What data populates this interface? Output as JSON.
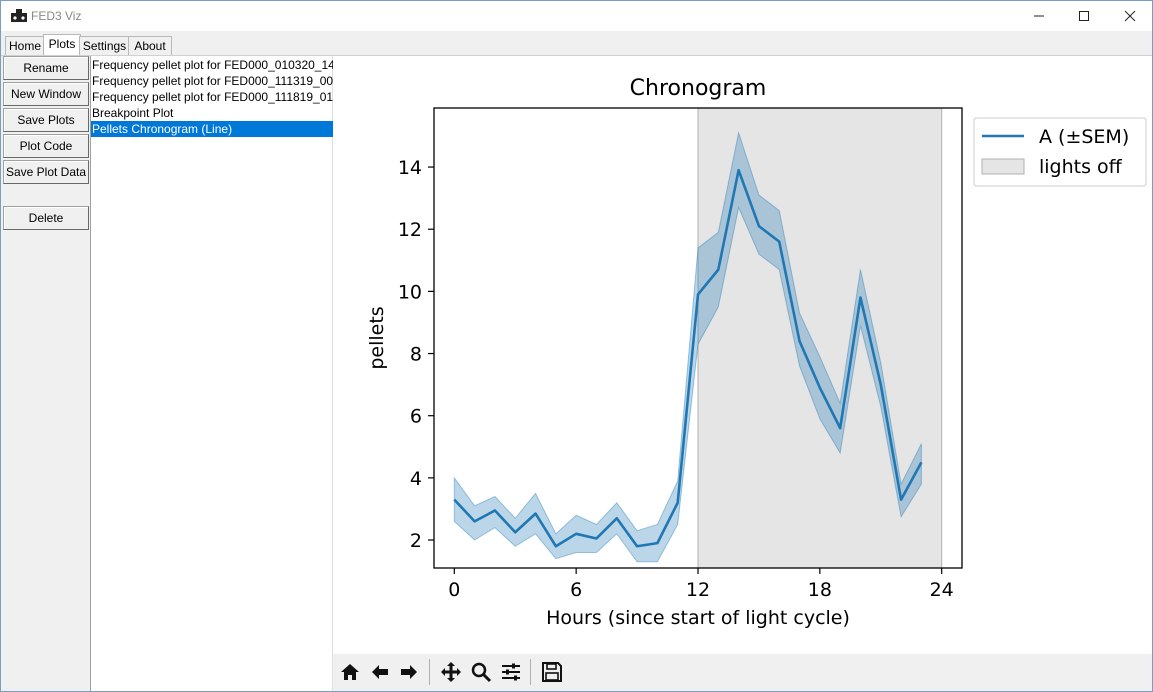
{
  "window": {
    "title": "FED3 Viz",
    "controls": {
      "minimize": "—",
      "maximize": "☐",
      "close": "✕"
    }
  },
  "tabs": [
    {
      "label": "Home"
    },
    {
      "label": "Plots"
    },
    {
      "label": "Settings"
    },
    {
      "label": "About"
    }
  ],
  "buttons": {
    "rename": "Rename",
    "new_window": "New Window",
    "save_plots": "Save Plots",
    "plot_code": "Plot Code",
    "save_plot_data": "Save Plot Data",
    "delete": "Delete"
  },
  "plot_list": [
    {
      "label": "Frequency pellet plot for FED000_010320_14"
    },
    {
      "label": "Frequency pellet plot for FED000_111319_00"
    },
    {
      "label": "Frequency pellet plot for FED000_111819_01"
    },
    {
      "label": "Breakpoint Plot"
    },
    {
      "label": "Pellets Chronogram (Line)",
      "selected": true
    }
  ],
  "chart_data": {
    "type": "line",
    "title": "Chronogram",
    "xlabel": "Hours (since start of light cycle)",
    "ylabel": "pellets",
    "xlim": [
      -1,
      25
    ],
    "ylim": [
      1.1,
      15.9
    ],
    "xticks": [
      0,
      6,
      12,
      18,
      24
    ],
    "yticks": [
      2,
      4,
      6,
      8,
      10,
      12,
      14
    ],
    "shaded_region": {
      "x_start": 12,
      "x_end": 24,
      "label": "lights off",
      "color": "#e5e5e5"
    },
    "series": [
      {
        "name": "A (±SEM)",
        "color": "#1f77b4",
        "x": [
          0,
          1,
          2,
          3,
          4,
          5,
          6,
          7,
          8,
          9,
          10,
          11,
          12,
          13,
          14,
          15,
          16,
          17,
          18,
          19,
          20,
          21,
          22,
          23
        ],
        "values": [
          3.3,
          2.6,
          2.95,
          2.25,
          2.85,
          1.8,
          2.2,
          2.05,
          2.7,
          1.8,
          1.9,
          3.2,
          9.9,
          10.7,
          13.9,
          12.1,
          11.6,
          8.4,
          6.9,
          5.6,
          9.8,
          7.0,
          3.3,
          4.5
        ],
        "lower": [
          2.6,
          2.0,
          2.4,
          1.8,
          2.2,
          1.4,
          1.6,
          1.6,
          2.2,
          1.3,
          1.3,
          2.5,
          8.3,
          9.5,
          12.7,
          11.2,
          10.7,
          7.6,
          5.9,
          4.8,
          8.9,
          6.3,
          2.75,
          3.8
        ],
        "upper": [
          4.0,
          3.1,
          3.4,
          2.7,
          3.5,
          2.2,
          2.8,
          2.5,
          3.2,
          2.3,
          2.5,
          3.9,
          11.4,
          11.9,
          15.1,
          13.1,
          12.6,
          9.3,
          7.9,
          6.4,
          10.7,
          7.7,
          3.8,
          5.1
        ]
      }
    ],
    "legend": {
      "position": "outside-right-top",
      "entries": [
        "A (±SEM)",
        "lights off"
      ]
    }
  },
  "toolbar": {
    "icons": [
      "home-icon",
      "back-arrow-icon",
      "forward-arrow-icon",
      "pan-icon",
      "zoom-icon",
      "configure-subplots-icon",
      "save-icon"
    ]
  }
}
